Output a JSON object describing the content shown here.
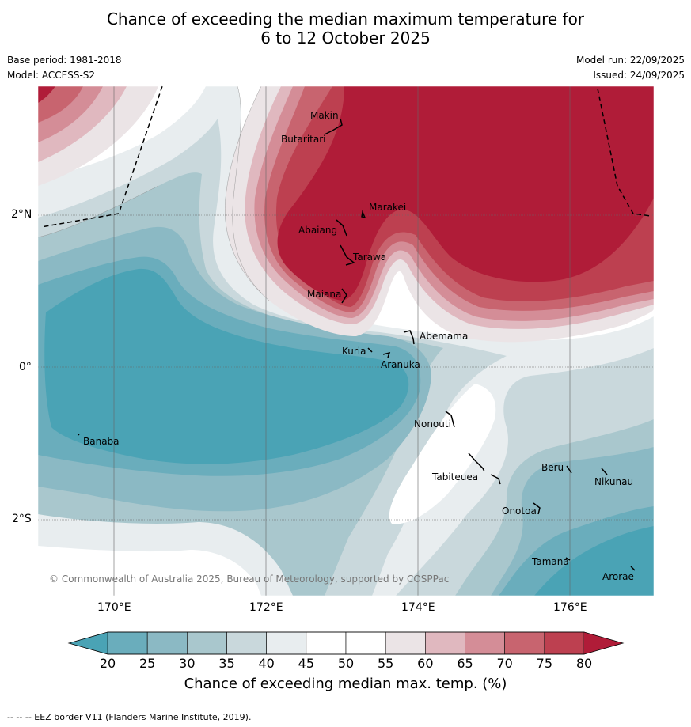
{
  "title": {
    "line1": "Chance of exceeding the median maximum temperature for",
    "line2": "6 to 12 October 2025"
  },
  "meta": {
    "base_period": "Base period: 1981-2018",
    "model": "Model: ACCESS-S2",
    "model_run": "Model run: 22/09/2025",
    "issued": "Issued: 24/09/2025"
  },
  "axes": {
    "lon_labels": [
      "170°E",
      "172°E",
      "174°E",
      "176°E"
    ],
    "lat_labels": [
      "2°N",
      "0°",
      "2°S"
    ]
  },
  "places": {
    "makin": "Makin",
    "butaritari": "Butaritari",
    "marakei": "Marakei",
    "abaiang": "Abaiang",
    "tarawa": "Tarawa",
    "maiana": "Maiana",
    "abemama": "Abemama",
    "kuria": "Kuria",
    "aranuka": "Aranuka",
    "nonouti": "Nonouti",
    "banaba": "Banaba",
    "beru": "Beru",
    "nikunau": "Nikunau",
    "tabiteuea": "Tabiteuea",
    "onotoa": "Onotoa",
    "tamana": "Tamana",
    "arorae": "Arorae"
  },
  "colorbar": {
    "ticks": [
      "20",
      "25",
      "30",
      "35",
      "40",
      "45",
      "50",
      "55",
      "60",
      "65",
      "70",
      "75",
      "80"
    ],
    "colors": [
      "#4aa3b5",
      "#6aadbc",
      "#8bb9c4",
      "#a9c7cd",
      "#c9d8dc",
      "#e8edef",
      "#ffffff",
      "#ffffff",
      "#ebe4e6",
      "#e0b8bf",
      "#d48d97",
      "#c8646f",
      "#bd4050",
      "#b01c38"
    ],
    "title": "Chance of exceeding median max. temp. (%)"
  },
  "copyright": "© Commonwealth of Australia 2025, Bureau of Meteorology, supported by COSPPac",
  "footer": "--  --  -- EEZ border V11 (Flanders Marine Institute, 2019)."
}
